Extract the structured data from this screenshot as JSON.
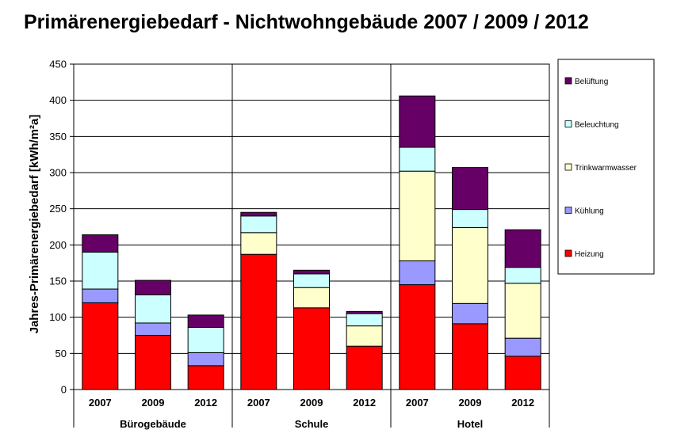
{
  "chart_data": {
    "type": "bar",
    "stacked": true,
    "title": "Primärenergiebedarf - Nichtwohngebäude 2007 / 2009 / 2012",
    "ylabel": "Jahres-Primärenergiebedarf [kWh/m²a]",
    "xlabel": "",
    "ylim": [
      0,
      450
    ],
    "yticks": [
      0,
      50,
      100,
      150,
      200,
      250,
      300,
      350,
      400,
      450
    ],
    "grid": true,
    "legend_position": "right",
    "groups": [
      {
        "name": "Bürogebäude",
        "categories": [
          "2007",
          "2009",
          "2012"
        ]
      },
      {
        "name": "Schule",
        "categories": [
          "2007",
          "2009",
          "2012"
        ]
      },
      {
        "name": "Hotel",
        "categories": [
          "2007",
          "2009",
          "2012"
        ]
      }
    ],
    "categories": [
      "2007",
      "2009",
      "2012",
      "2007",
      "2009",
      "2012",
      "2007",
      "2009",
      "2012"
    ],
    "series": [
      {
        "name": "Heizung",
        "color": "#ff0000",
        "values": [
          120,
          75,
          33,
          187,
          113,
          60,
          145,
          91,
          46
        ]
      },
      {
        "name": "Kühlung",
        "color": "#9999ff",
        "values": [
          19,
          17,
          18,
          0,
          0,
          0,
          33,
          28,
          25
        ]
      },
      {
        "name": "Trinkwarmwasser",
        "color": "#ffffcc",
        "values": [
          0,
          0,
          0,
          30,
          28,
          28,
          124,
          105,
          76
        ]
      },
      {
        "name": "Beleuchtung",
        "color": "#ccffff",
        "values": [
          51,
          39,
          35,
          23,
          19,
          17,
          33,
          25,
          22
        ]
      },
      {
        "name": "Belüftung",
        "color": "#660066",
        "values": [
          24,
          20,
          17,
          5,
          5,
          3,
          71,
          58,
          52
        ]
      }
    ]
  }
}
